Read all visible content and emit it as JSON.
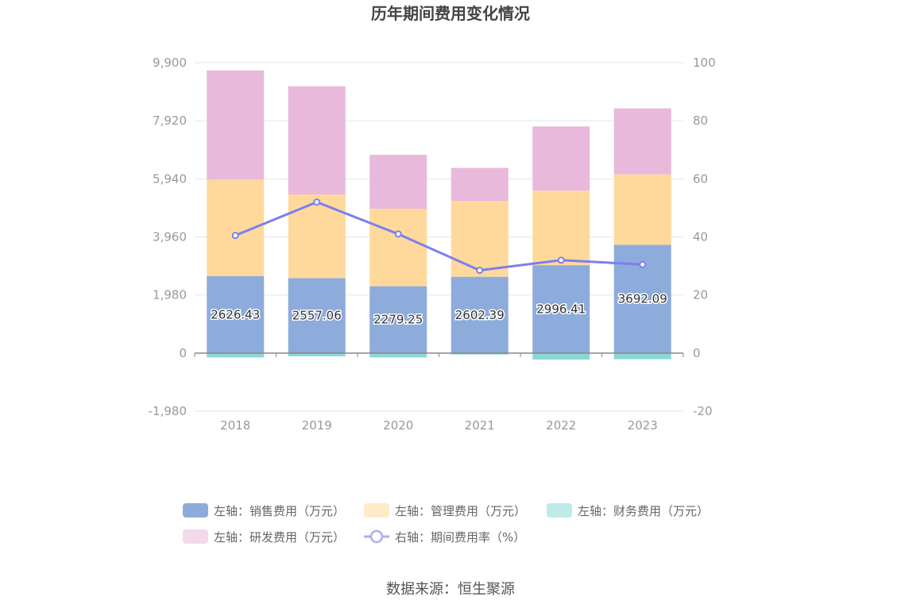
{
  "chart_data": {
    "type": "bar",
    "title": "历年期间费用变化情况",
    "categories": [
      "2018",
      "2019",
      "2020",
      "2021",
      "2022",
      "2023"
    ],
    "stacked": true,
    "series": [
      {
        "name": "左轴：销售费用（万元）",
        "axis": "left",
        "type": "bar",
        "color": "#8eacdb",
        "values": [
          2626.43,
          2557.06,
          2279.25,
          2602.39,
          2996.41,
          3692.09
        ],
        "labels": [
          "2626.43",
          "2557.06",
          "2279.25",
          "2602.39",
          "2996.41",
          "3692.09"
        ]
      },
      {
        "name": "左轴：管理费用（万元）",
        "axis": "left",
        "type": "bar",
        "color": "#ffd99c",
        "values": [
          3290,
          2850,
          2640,
          2580,
          2540,
          2400
        ]
      },
      {
        "name": "左轴：财务费用（万元）",
        "axis": "left",
        "type": "bar",
        "color": "#8ad8d8",
        "values": [
          -150,
          -110,
          -150,
          -50,
          -220,
          -210
        ]
      },
      {
        "name": "左轴：研发费用（万元）",
        "axis": "left",
        "type": "bar",
        "color": "#e8b9da",
        "values": [
          3720,
          3690,
          1840,
          1130,
          2190,
          2250
        ]
      },
      {
        "name": "右轴：期间费用率（%）",
        "axis": "right",
        "type": "line",
        "color": "#7b7ff0",
        "values": [
          40.5,
          52.0,
          41.0,
          28.5,
          32.0,
          30.5
        ]
      }
    ],
    "left_axis": {
      "min": -1980,
      "max": 9900,
      "ticks": [
        "9,900",
        "7,920",
        "5,940",
        "3,960",
        "1,980",
        "0",
        "-1,980"
      ],
      "tick_values": [
        9900,
        7920,
        5940,
        3960,
        1980,
        0,
        -1980
      ]
    },
    "right_axis": {
      "min": -20,
      "max": 100,
      "ticks": [
        "100",
        "80",
        "60",
        "40",
        "20",
        "0",
        "-20"
      ],
      "tick_values": [
        100,
        80,
        60,
        40,
        20,
        0,
        -20
      ]
    },
    "legend_position": "bottom",
    "grid": true
  },
  "source": "数据来源：恒生聚源"
}
